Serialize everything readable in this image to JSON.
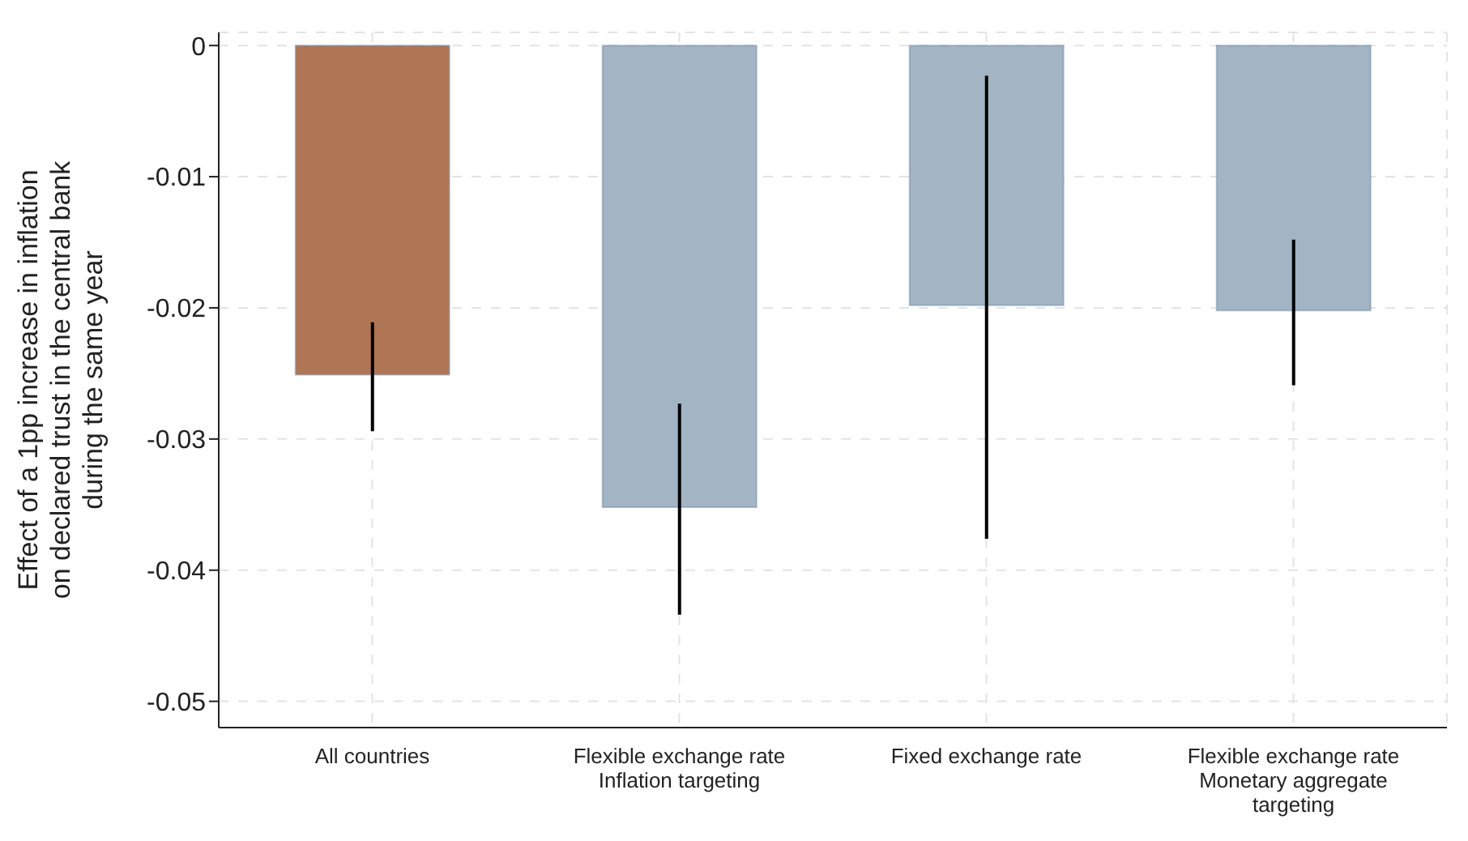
{
  "chart_data": {
    "type": "bar",
    "ylabel": "Effect of a 1pp increase in inflation\non declared trust in the central bank\nduring the same year",
    "categories": [
      "All countries",
      "Flexible exchange rate\nInflation targeting",
      "Fixed exchange rate",
      "Flexible exchange rate\nMonetary aggregate\ntargeting"
    ],
    "values": [
      -0.0251,
      -0.0352,
      -0.0198,
      -0.0202
    ],
    "colors": [
      "#b07555",
      "#a3b4c4",
      "#a3b4c4",
      "#a3b4c4"
    ],
    "errors": [
      [
        -0.0294,
        -0.0211
      ],
      [
        -0.0434,
        -0.0273
      ],
      [
        -0.0376,
        -0.0023
      ],
      [
        -0.0259,
        -0.0148
      ]
    ],
    "ylim": [
      -0.052,
      0.001
    ],
    "yticks": [
      0,
      -0.01,
      -0.02,
      -0.03,
      -0.04,
      -0.05
    ],
    "grid": true
  }
}
